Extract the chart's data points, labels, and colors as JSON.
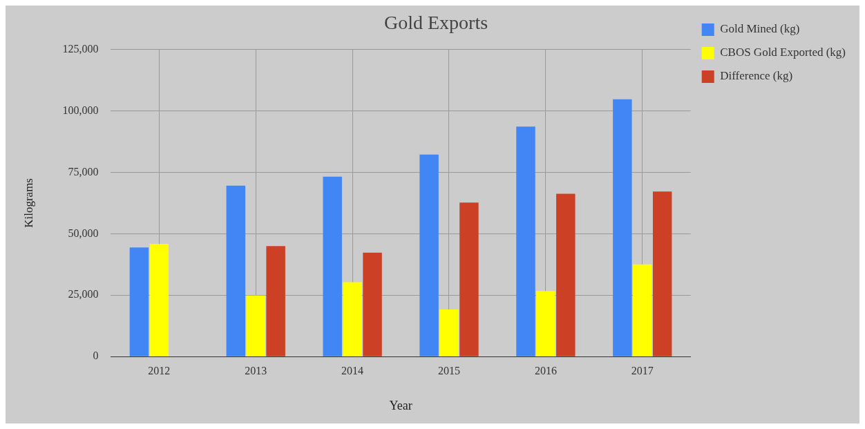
{
  "chart_data": {
    "type": "bar",
    "title": "Gold Exports",
    "xlabel": "Year",
    "ylabel": "Kilograms",
    "categories": [
      "2012",
      "2013",
      "2014",
      "2015",
      "2016",
      "2017"
    ],
    "series": [
      {
        "name": "Gold Mined (kg)",
        "color": "#4285f4",
        "values": [
          44400,
          69600,
          73200,
          82200,
          93600,
          104700
        ]
      },
      {
        "name": "CBOS Gold Exported (kg)",
        "color": "#ffff00",
        "values": [
          45900,
          24900,
          30300,
          19200,
          26700,
          37500
        ]
      },
      {
        "name": "Difference (kg)",
        "color": "#cc4125",
        "values": [
          null,
          45000,
          42300,
          62700,
          66300,
          67200
        ]
      }
    ],
    "ylim": [
      0,
      125000
    ],
    "yticks": [
      0,
      {
        "value": 25000,
        "label": "25,000"
      },
      {
        "value": 50000,
        "label": "50,000"
      },
      {
        "value": 75000,
        "label": "75,000"
      },
      {
        "value": 100000,
        "label": "100,000"
      },
      {
        "value": 125000,
        "label": "125,000"
      }
    ],
    "grid": true,
    "legend": "right"
  }
}
